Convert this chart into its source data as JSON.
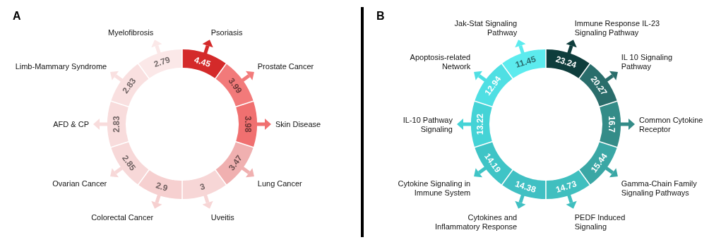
{
  "chart_data": [
    {
      "type": "other",
      "title": "A",
      "categories": [
        "Psoriasis",
        "Prostate Cancer",
        "Skin Disease",
        "Lung Cancer",
        "Uveitis",
        "Colorectal Cancer",
        "Ovarian Cancer",
        "AFD & CP",
        "Limb-Mammary Syndrome",
        "Myelofibrosis"
      ],
      "values": [
        4.45,
        3.99,
        3.98,
        3.47,
        3,
        2.9,
        2.85,
        2.83,
        2.83,
        2.79
      ],
      "colors": [
        "#d42a2a",
        "#f27a7a",
        "#f07070",
        "#f0b0b0",
        "#f7d6d6",
        "#f6d0d0",
        "#f7d8d8",
        "#f8dcdc",
        "#f9e0e0",
        "#fbe8e8"
      ],
      "data_labels": true
    },
    {
      "type": "other",
      "title": "B",
      "categories": [
        "Immune Response IL-23 Signaling Pathway",
        "IL 10 Signaling Pathway",
        "Common Cytokine Receptor",
        "Gamma-Chain Family Signaling Pathways",
        "PEDF Induced Signaling",
        "Cytokines and Inflammatory Response",
        "Cytokine Signaling in Immune System",
        "IL-10 Pathway Signaling",
        "Apoptosis-related Network",
        "Jak-Stat Signaling Pathway"
      ],
      "values": [
        23.24,
        20.27,
        16.7,
        15.44,
        14.73,
        14.38,
        14.19,
        13.22,
        12.94,
        11.45
      ],
      "colors": [
        "#0e3d3c",
        "#2a6d6b",
        "#348c88",
        "#3aa7a5",
        "#40bfbf",
        "#40c0c3",
        "#3fc4c6",
        "#45d3d6",
        "#4fdfe3",
        "#5cebee"
      ],
      "data_labels": true
    }
  ]
}
